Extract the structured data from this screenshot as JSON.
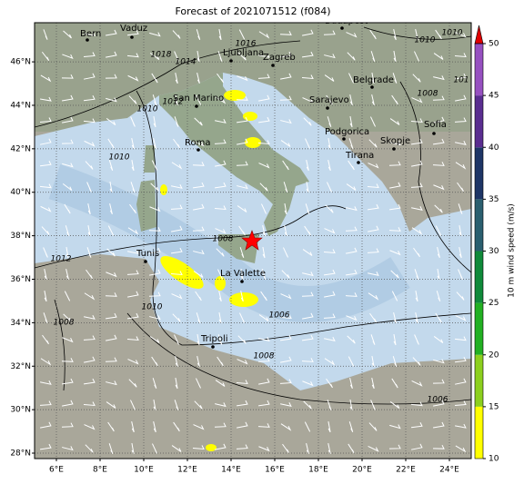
{
  "title": "Forecast of 2021071512 (f084)",
  "map": {
    "xlim": [
      5,
      25
    ],
    "ylim": [
      27.75,
      47.8
    ],
    "xticks": [
      {
        "value": 6,
        "label": "6°E"
      },
      {
        "value": 8,
        "label": "8°E"
      },
      {
        "value": 10,
        "label": "10°E"
      },
      {
        "value": 12,
        "label": "12°E"
      },
      {
        "value": 14,
        "label": "14°E"
      },
      {
        "value": 16,
        "label": "16°E"
      },
      {
        "value": 18,
        "label": "18°E"
      },
      {
        "value": 20,
        "label": "20°E"
      },
      {
        "value": 22,
        "label": "22°E"
      },
      {
        "value": 24,
        "label": "24°E"
      }
    ],
    "yticks": [
      {
        "value": 28,
        "label": "28°N"
      },
      {
        "value": 30,
        "label": "30°N"
      },
      {
        "value": 32,
        "label": "32°N"
      },
      {
        "value": 34,
        "label": "34°N"
      },
      {
        "value": 36,
        "label": "36°N"
      },
      {
        "value": 38,
        "label": "38°N"
      },
      {
        "value": 40,
        "label": "40°N"
      },
      {
        "value": 42,
        "label": "42°N"
      },
      {
        "value": 44,
        "label": "44°N"
      },
      {
        "value": 46,
        "label": "46°N"
      }
    ],
    "grid": true
  },
  "cities": [
    "Bern",
    "Vaduz",
    "Ljubljana",
    "Zagreb",
    "Budapest",
    "Belgrade",
    "Sarajevo",
    "San Marino",
    "Podgorica",
    "Sofia",
    "Skopje",
    "Tirana",
    "Roma",
    "Tunis",
    "La Valette",
    "Tripoli"
  ],
  "isobar_labels": [
    "1010",
    "1010",
    "1016",
    "1014",
    "1018",
    "1012",
    "1010",
    "1010",
    "1008",
    "1012",
    "1010",
    "1008",
    "1006",
    "1008",
    "1006",
    "1008",
    "101"
  ],
  "colorbar": {
    "label": "10 m wind speed (m/s)",
    "ticks": [
      10,
      15,
      20,
      25,
      30,
      35,
      40,
      45,
      50
    ],
    "colors": [
      "#ffff00",
      "#8ccf1e",
      "#22b022",
      "#108a3a",
      "#2b5f6f",
      "#1e3566",
      "#5a2d90",
      "#9650c0"
    ],
    "extend_color": "#e00000"
  }
}
